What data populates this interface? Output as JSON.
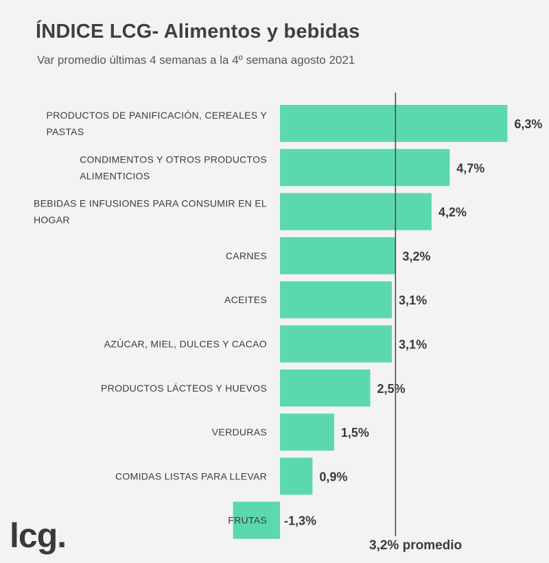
{
  "chart_data": {
    "type": "bar",
    "orientation": "horizontal",
    "title": "ÍNDICE LCG- Alimentos y bebidas",
    "subtitle": "Var promedio últimas 4 semanas a la 4º semana agosto 2021",
    "categories": [
      [
        "PRODUCTOS DE PANIFICACIÓN, CEREALES Y",
        "PASTAS"
      ],
      [
        "CONDIMENTOS Y OTROS PRODUCTOS",
        "ALIMENTICIOS"
      ],
      [
        "BEBIDAS E INFUSIONES PARA CONSUMIR EN EL",
        "HOGAR"
      ],
      [
        "CARNES"
      ],
      [
        "ACEITES"
      ],
      [
        "AZÚCAR, MIEL, DULCES Y CACAO"
      ],
      [
        "PRODUCTOS LÁCTEOS Y HUEVOS"
      ],
      [
        "VERDURAS"
      ],
      [
        "COMIDAS LISTAS PARA LLEVAR"
      ],
      [
        "FRUTAS"
      ]
    ],
    "values": [
      6.3,
      4.7,
      4.2,
      3.2,
      3.1,
      3.1,
      2.5,
      1.5,
      0.9,
      -1.3
    ],
    "value_labels": [
      "6,3%",
      "4,7%",
      "4,2%",
      "3,2%",
      "3,1%",
      "3,1%",
      "2,5%",
      "1,5%",
      "0,9%",
      "-1,3%"
    ],
    "average": 3.2,
    "average_label": "3,2% promedio",
    "bar_color": "#5cd8ae",
    "xlim": [
      -1.3,
      6.3
    ]
  },
  "logo_text": "lcg."
}
